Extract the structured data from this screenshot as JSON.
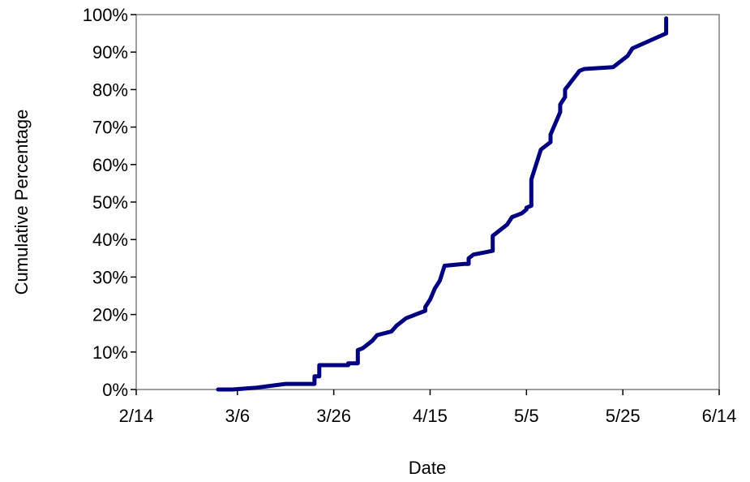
{
  "chart_data": {
    "type": "line",
    "title": "",
    "xlabel": "Date",
    "ylabel": "Cumulative Percentage",
    "x_ticks": [
      "2/14",
      "3/6",
      "3/26",
      "4/15",
      "5/5",
      "5/25",
      "6/14"
    ],
    "y_ticks": [
      "0%",
      "10%",
      "20%",
      "30%",
      "40%",
      "50%",
      "60%",
      "70%",
      "80%",
      "90%",
      "100%"
    ],
    "xlim": [
      "2/14",
      "6/14"
    ],
    "ylim": [
      0,
      100
    ],
    "grid": false,
    "line_color": "#000080",
    "series": [
      {
        "x": [
          "3/2",
          "3/5",
          "3/10",
          "3/10",
          "3/16",
          "3/16",
          "3/22",
          "3/22",
          "3/23",
          "3/23",
          "3/29",
          "3/29",
          "3/31",
          "3/31",
          "4/1",
          "4/2",
          "4/3",
          "4/4",
          "4/7",
          "4/8",
          "4/10",
          "4/12",
          "4/14",
          "4/14",
          "4/15",
          "4/16",
          "4/17",
          "4/18",
          "4/22",
          "4/23",
          "4/23",
          "4/24",
          "4/26",
          "4/28",
          "4/28",
          "4/29",
          "5/1",
          "5/2",
          "5/4",
          "5/4",
          "5/5",
          "5/5",
          "5/6",
          "5/6",
          "5/7",
          "5/8",
          "5/9",
          "5/10",
          "5/10",
          "5/12",
          "5/12",
          "5/13",
          "5/13",
          "5/16",
          "5/17",
          "5/23",
          "5/24",
          "5/26",
          "5/27",
          "6/3",
          "6/3",
          "6/3"
        ],
        "y": [
          0,
          0,
          0.5,
          0.5,
          1.5,
          1.5,
          1.5,
          3.5,
          3.5,
          6.5,
          6.5,
          7,
          7,
          10.5,
          11,
          12,
          13,
          14.5,
          15.5,
          17,
          19,
          20,
          21,
          22,
          24,
          27,
          29,
          33,
          33.5,
          33.5,
          35,
          36,
          36.5,
          37,
          41,
          42,
          44,
          46,
          47,
          47,
          48,
          48.5,
          49,
          56,
          60,
          64,
          65,
          66,
          68,
          74,
          76,
          78,
          80,
          85,
          85.5,
          86,
          87,
          89,
          91,
          95,
          95.5,
          99
        ]
      }
    ]
  }
}
